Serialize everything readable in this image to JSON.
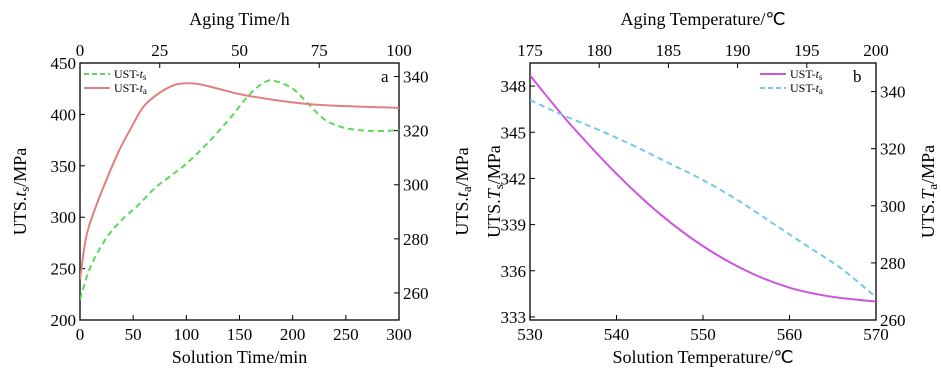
{
  "chart_data": [
    {
      "type": "line",
      "panel_label": "a",
      "x_bottom": {
        "label": "Solution Time/min",
        "range": [
          0,
          300
        ],
        "ticks": [
          0,
          50,
          100,
          150,
          200,
          250,
          300
        ]
      },
      "x_top": {
        "label": "Aging Time/h",
        "range": [
          0,
          100
        ],
        "ticks": [
          0,
          25,
          50,
          75,
          100
        ]
      },
      "y_left": {
        "label_parts": [
          "UTS.",
          "t",
          "s",
          "/MPa"
        ],
        "range": [
          200,
          450
        ],
        "ticks": [
          200,
          250,
          300,
          350,
          400,
          450
        ]
      },
      "y_right": {
        "label_parts": [
          "UTS.",
          "t",
          "a",
          "/MPa"
        ],
        "range": [
          250,
          345
        ],
        "ticks": [
          260,
          280,
          300,
          320,
          340
        ]
      },
      "series": [
        {
          "name": "UST-ts",
          "name_base": "UST-",
          "name_var": "t",
          "name_sub": "s",
          "color": "#5bd95b",
          "style": "dashed",
          "x_axis": "bottom",
          "y_axis": "left",
          "x": [
            0,
            10,
            25,
            40,
            55,
            70,
            85,
            100,
            120,
            140,
            160,
            175,
            185,
            200,
            215,
            230,
            245,
            260,
            275,
            290,
            300
          ],
          "y": [
            220,
            252,
            280,
            298,
            312,
            328,
            340,
            352,
            372,
            395,
            420,
            432,
            432,
            425,
            410,
            395,
            388,
            385,
            384,
            384,
            385
          ]
        },
        {
          "name": "UST-ta",
          "name_base": "UST-",
          "name_var": "t",
          "name_sub": "a",
          "color": "#e08080",
          "style": "solid",
          "x_axis": "top",
          "y_axis": "right",
          "x": [
            0,
            2,
            5,
            8,
            12,
            16,
            20,
            25,
            30,
            35,
            40,
            50,
            60,
            70,
            80,
            90,
            100
          ],
          "y": [
            265,
            281,
            292,
            301,
            312,
            321,
            329,
            334,
            337,
            337.5,
            336.5,
            333.5,
            331.5,
            330,
            329.2,
            328.8,
            328.4
          ]
        }
      ]
    },
    {
      "type": "line",
      "panel_label": "b",
      "x_bottom": {
        "label": "Solution Temperature/℃",
        "range": [
          530,
          570
        ],
        "ticks": [
          530,
          540,
          550,
          560,
          570
        ]
      },
      "x_top": {
        "label": "Aging Temperature/℃",
        "range": [
          175,
          200
        ],
        "ticks": [
          175,
          180,
          185,
          190,
          195,
          200
        ]
      },
      "y_left": {
        "label_parts": [
          "UTS.",
          "T",
          "s",
          "/MPa"
        ],
        "range": [
          332.8,
          349.5
        ],
        "ticks": [
          333,
          336,
          339,
          342,
          345,
          348
        ]
      },
      "y_right": {
        "label_parts": [
          "UTS.",
          "T",
          "a",
          "/MPa"
        ],
        "range": [
          260,
          350
        ],
        "ticks": [
          260,
          280,
          300,
          320,
          340
        ]
      },
      "series": [
        {
          "name": "UST-ts",
          "name_base": "UST-",
          "name_var": "t",
          "name_sub": "s",
          "color": "#cc55dd",
          "style": "solid",
          "x_axis": "bottom",
          "y_axis": "left",
          "x": [
            530,
            532,
            535,
            540,
            545,
            550,
            555,
            560,
            565,
            570
          ],
          "y": [
            348.7,
            347.3,
            345.3,
            342.3,
            339.7,
            337.6,
            336,
            334.9,
            334.3,
            334
          ]
        },
        {
          "name": "UST-ta",
          "name_base": "UST-",
          "name_var": "t",
          "name_sub": "a",
          "color": "#77c8e8",
          "style": "dashed",
          "x_axis": "top",
          "y_axis": "right",
          "x": [
            175,
            177.5,
            180,
            182.5,
            185,
            187.5,
            190,
            192.5,
            195,
            197.5,
            200
          ],
          "y": [
            337,
            331.5,
            326.5,
            321,
            315,
            309,
            302,
            294,
            286,
            278,
            268
          ]
        }
      ]
    }
  ]
}
